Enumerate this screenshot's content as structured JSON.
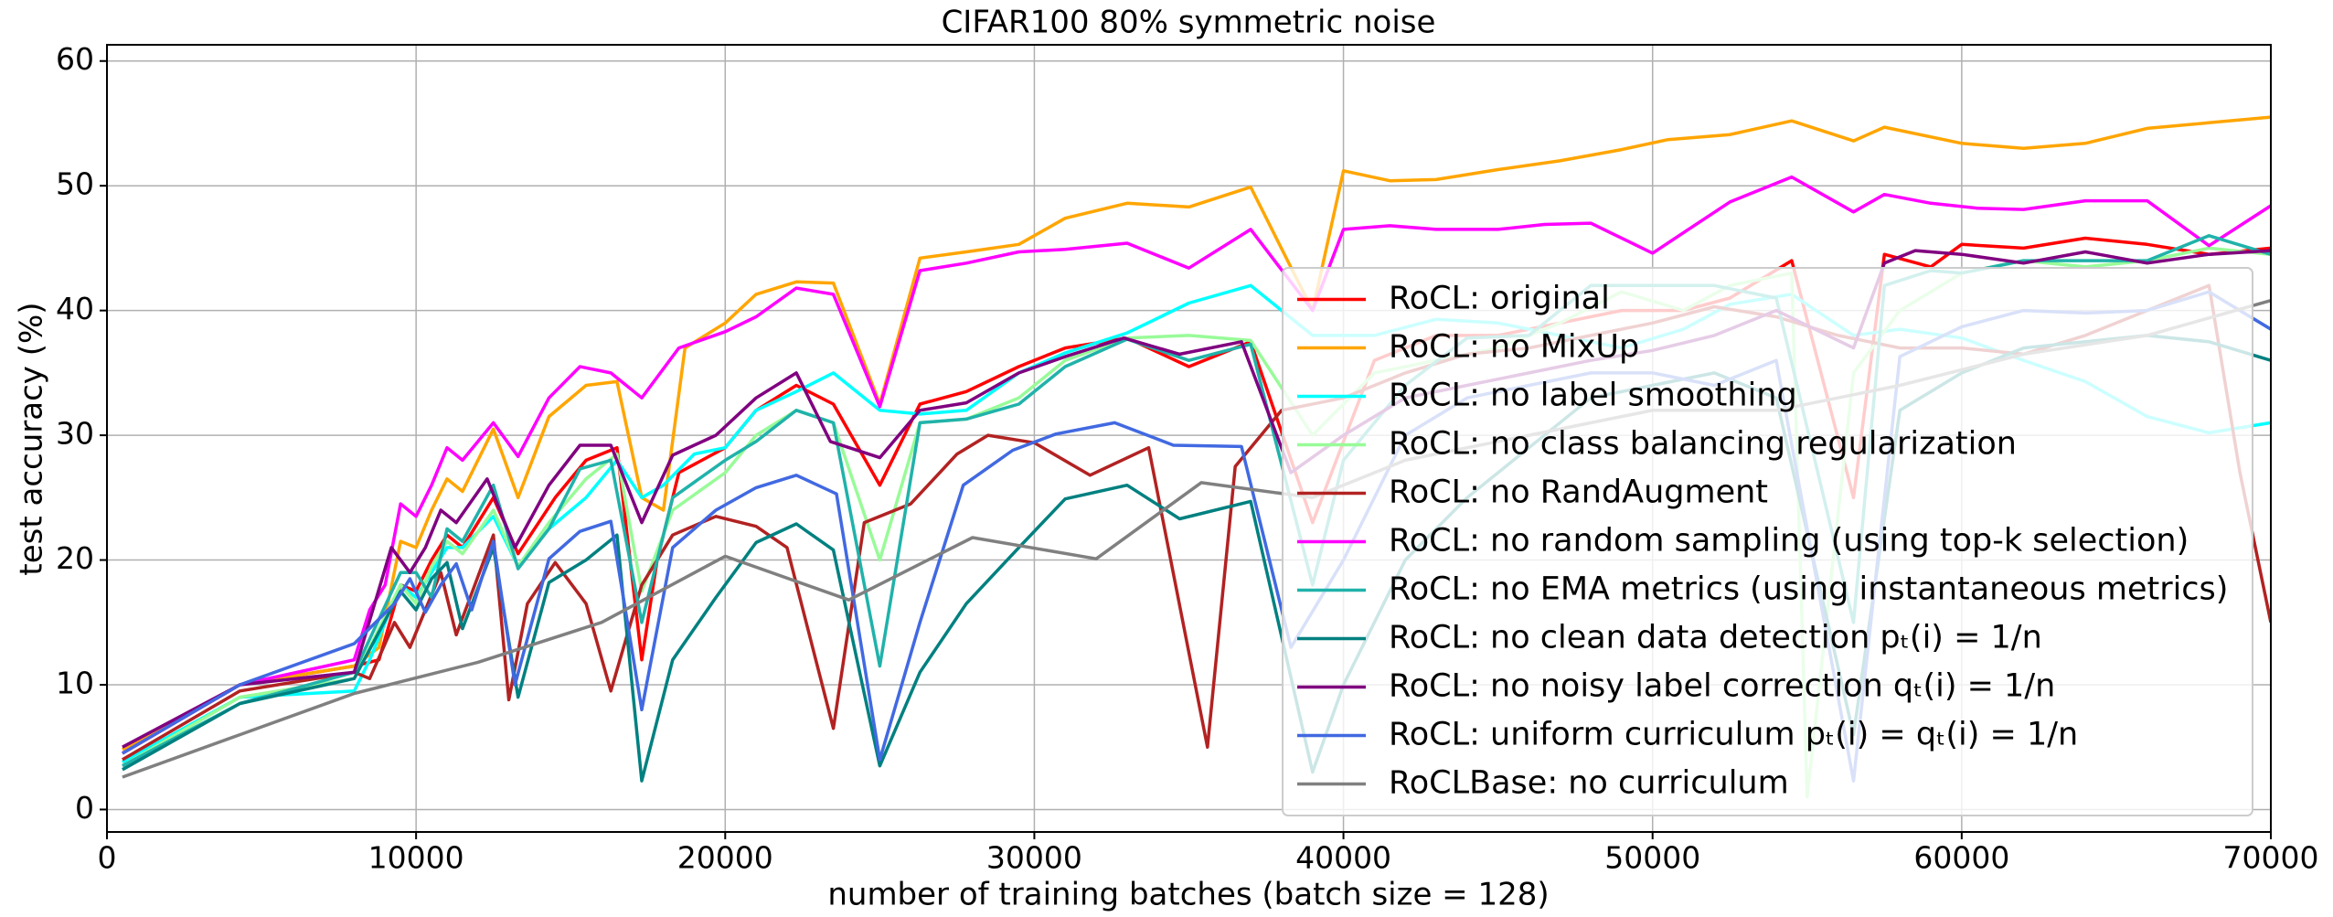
{
  "chart_data": {
    "type": "line",
    "title": "CIFAR100 80% symmetric noise",
    "x_label": "number of training batches (batch size = 128)",
    "y_label": "test accuracy (%)",
    "xlim": [
      0,
      70000
    ],
    "ylim": [
      -1.8,
      61.3
    ],
    "xticks": [
      0,
      10000,
      20000,
      30000,
      40000,
      50000,
      60000,
      70000
    ],
    "yticks": [
      0,
      10,
      20,
      30,
      40,
      50,
      60
    ],
    "grid": true,
    "legend": "lower right",
    "series": [
      {
        "name": "RoCL: original",
        "color": "#ff0000",
        "x": [
          500,
          4300,
          8000,
          8800,
          9500,
          10000,
          10500,
          11000,
          11500,
          12500,
          13300,
          14500,
          15500,
          16500,
          17300,
          17800,
          18500,
          20000,
          21000,
          22300,
          23500,
          25000,
          26300,
          27800,
          29500,
          31000,
          33000,
          35000,
          37000,
          39000,
          41000,
          43000,
          45000,
          47000,
          49000,
          51000,
          52500,
          54500,
          56500,
          57500,
          59000,
          60000,
          62000,
          64000,
          66000,
          68000,
          70000
        ],
        "values": [
          4.5,
          10,
          11.5,
          12,
          18,
          17.5,
          20,
          22,
          21,
          25,
          20.5,
          25,
          28,
          29,
          12,
          20,
          27,
          29,
          32,
          34,
          32.5,
          26,
          32.5,
          33.5,
          35.5,
          37,
          37.8,
          35.5,
          37.5,
          23,
          36,
          38,
          38,
          39,
          40,
          40,
          41,
          44,
          25,
          44.5,
          43.5,
          45.3,
          45,
          45.8,
          45.3,
          44.5,
          45
        ]
      },
      {
        "name": "RoCL: no MixUp",
        "color": "#ffa500",
        "x": [
          500,
          4300,
          8000,
          8800,
          9500,
          10000,
          10500,
          11000,
          11500,
          12500,
          13300,
          14300,
          15500,
          16500,
          17300,
          18000,
          18700,
          20000,
          21000,
          22300,
          23500,
          25000,
          26300,
          27800,
          29500,
          31000,
          33000,
          35000,
          37000,
          39000,
          40000,
          41500,
          43000,
          45000,
          47000,
          49000,
          50500,
          52500,
          54500,
          56500,
          57500,
          60000,
          62000,
          64000,
          66000,
          70000
        ],
        "values": [
          4.8,
          10,
          11.5,
          13,
          21.5,
          21,
          24,
          26.5,
          25.5,
          30.5,
          25,
          31.5,
          34,
          34.3,
          25,
          24,
          37,
          39,
          41.3,
          42.3,
          42.2,
          32.5,
          44.2,
          44.7,
          45.3,
          47.4,
          48.6,
          48.3,
          49.9,
          40,
          51.2,
          50.4,
          50.5,
          51.3,
          52,
          52.9,
          53.7,
          54.1,
          55.2,
          53.6,
          54.7,
          53.4,
          53,
          53.4,
          54.6,
          55.5
        ]
      },
      {
        "name": "RoCL: no label smoothing",
        "color": "#00ffff",
        "x": [
          500,
          4300,
          8000,
          8500,
          9500,
          10000,
          10500,
          11000,
          11500,
          12500,
          13300,
          14300,
          15500,
          16500,
          17300,
          18000,
          19000,
          20000,
          21000,
          22300,
          23500,
          25000,
          26300,
          27800,
          29500,
          31000,
          33000,
          35000,
          37000,
          39000,
          41000,
          43000,
          45000,
          47000,
          49000,
          51000,
          52500,
          54500,
          56500,
          58000,
          60000,
          62000,
          64000,
          66000,
          68000,
          70000
        ],
        "values": [
          3.8,
          9,
          9.5,
          12,
          18,
          17,
          19,
          21,
          21,
          23.5,
          19.5,
          22.5,
          25,
          28,
          25,
          26,
          28.5,
          29,
          32,
          33.5,
          35,
          32,
          31.7,
          32,
          35,
          36.6,
          38.2,
          40.6,
          42,
          38,
          38,
          39.3,
          39,
          38,
          37,
          38.5,
          40.5,
          41.3,
          38,
          38.5,
          37.8,
          36,
          34.3,
          31.5,
          30.2,
          31
        ]
      },
      {
        "name": "RoCL: no class balancing regularization",
        "color": "#98fb98",
        "x": [
          500,
          4300,
          8000,
          9500,
          10000,
          10500,
          11000,
          11500,
          12500,
          13300,
          14300,
          15500,
          16500,
          17300,
          18300,
          20000,
          21000,
          22300,
          23500,
          25000,
          26300,
          27800,
          29500,
          31000,
          33000,
          35000,
          37000,
          39000,
          41000,
          43000,
          45000,
          47000,
          49000,
          51000,
          52500,
          54500,
          55000,
          56500,
          58000,
          60000,
          62000,
          64000,
          66000,
          68000,
          70000
        ],
        "values": [
          3.5,
          9,
          10.5,
          18,
          16.5,
          19.5,
          21.5,
          20.5,
          24,
          19.5,
          23,
          26.5,
          28.5,
          17.5,
          24,
          27,
          30,
          32,
          31,
          20,
          31,
          31.3,
          33,
          36,
          37.8,
          38,
          37.6,
          30,
          35,
          36,
          37,
          39,
          41.5,
          40,
          42,
          43,
          1,
          35,
          40,
          43,
          44,
          43.5,
          44,
          45,
          44.5
        ]
      },
      {
        "name": "RoCL: no RandAugment",
        "color": "#b22222",
        "x": [
          500,
          4300,
          8000,
          8500,
          9300,
          9800,
          10300,
          10800,
          11300,
          12500,
          13000,
          13600,
          14500,
          15500,
          16300,
          17300,
          18300,
          19700,
          21000,
          22000,
          23500,
          24500,
          26000,
          27500,
          28500,
          30000,
          31800,
          33700,
          35600,
          36500,
          38000,
          40000,
          42000,
          44000,
          46000,
          48000,
          50000,
          52000,
          54000,
          56000,
          58000,
          60000,
          62000,
          64000,
          66000,
          68000,
          69000,
          70000
        ],
        "values": [
          4,
          9.5,
          11,
          10.5,
          15,
          13,
          16,
          19,
          14,
          22,
          8.8,
          16.5,
          19.8,
          16.5,
          9.5,
          18,
          22,
          23.5,
          22.7,
          21,
          6.5,
          23,
          24.5,
          28.5,
          30,
          29.4,
          26.8,
          29,
          5,
          27.5,
          32,
          33,
          35,
          36.5,
          37,
          38,
          39,
          40.3,
          39.5,
          38,
          37,
          37,
          36.5,
          38,
          40,
          42,
          27,
          15
        ]
      },
      {
        "name": "RoCL: no random sampling (using top-k selection)",
        "color": "#ff00ff",
        "x": [
          500,
          4300,
          8000,
          8500,
          9000,
          9500,
          10000,
          10500,
          11000,
          11500,
          12500,
          13300,
          14300,
          15300,
          16300,
          17300,
          18500,
          20000,
          21000,
          22300,
          23500,
          25000,
          26300,
          27800,
          29500,
          31000,
          33000,
          35000,
          37000,
          39000,
          40000,
          41500,
          43000,
          45000,
          46500,
          48000,
          50000,
          52500,
          54500,
          56500,
          57500,
          59000,
          60500,
          62000,
          64000,
          66000,
          68000,
          70000
        ],
        "values": [
          4.5,
          10,
          12,
          16,
          18,
          24.5,
          23.5,
          26,
          29,
          28,
          31,
          28.3,
          33,
          35.5,
          35,
          33,
          37,
          38.3,
          39.5,
          41.8,
          41.3,
          32.3,
          43.2,
          43.8,
          44.7,
          44.9,
          45.4,
          43.4,
          46.5,
          40,
          46.5,
          46.8,
          46.5,
          46.5,
          46.9,
          47,
          44.6,
          48.7,
          50.7,
          47.9,
          49.3,
          48.6,
          48.2,
          48.1,
          48.8,
          48.8,
          45.2,
          48.4
        ]
      },
      {
        "name": "RoCL: no EMA metrics (using instantaneous metrics)",
        "color": "#20b2aa",
        "x": [
          500,
          4300,
          8000,
          9500,
          10000,
          10500,
          11000,
          11500,
          12500,
          13300,
          14300,
          15300,
          16300,
          17300,
          18300,
          20000,
          21000,
          22300,
          23500,
          25000,
          26300,
          27800,
          29500,
          31000,
          33000,
          35000,
          37000,
          39000,
          40000,
          42000,
          44000,
          46000,
          48000,
          50000,
          52000,
          54000,
          56500,
          57500,
          59000,
          60000,
          62000,
          64000,
          66000,
          68000,
          70000
        ],
        "values": [
          3.5,
          8.5,
          11,
          19,
          19,
          17,
          22.5,
          21.5,
          26,
          19.3,
          22.5,
          27.3,
          28,
          15,
          25,
          28,
          29.5,
          32,
          31,
          11.5,
          31,
          31.3,
          32.5,
          35.5,
          37.7,
          36,
          37.3,
          18,
          28,
          34,
          37.8,
          38,
          42,
          42,
          42,
          41,
          15,
          42,
          43.2,
          43,
          44,
          44,
          44,
          46,
          44.5
        ]
      },
      {
        "name": "RoCL: no clean data detection pₜ(i) = 1/n",
        "color": "#008080",
        "x": [
          500,
          4300,
          8000,
          9500,
          10000,
          10500,
          11000,
          11500,
          12500,
          13300,
          14300,
          15500,
          16500,
          17300,
          18300,
          19700,
          21000,
          22300,
          23500,
          25000,
          26300,
          27800,
          29500,
          31000,
          33000,
          34700,
          37000,
          39000,
          40000,
          42000,
          44000,
          46000,
          48000,
          50000,
          52000,
          54000,
          56500,
          58000,
          60000,
          62000,
          64000,
          66000,
          68000,
          70000
        ],
        "values": [
          3.2,
          8.5,
          10.5,
          17.5,
          16,
          18.5,
          19.8,
          14.5,
          21,
          9,
          18.2,
          20,
          22,
          2.3,
          12,
          17,
          21.4,
          22.9,
          20.8,
          3.5,
          11,
          16.5,
          21,
          24.9,
          26,
          23.3,
          24.7,
          3,
          10,
          20,
          25,
          29,
          33,
          34,
          35,
          33,
          6,
          32,
          35,
          37,
          37.5,
          38,
          37.5,
          36
        ]
      },
      {
        "name": "RoCL: no noisy label correction qₜ(i) = 1/n",
        "color": "#800080",
        "x": [
          500,
          4300,
          8000,
          9200,
          9800,
          10300,
          10800,
          11300,
          12300,
          13200,
          14300,
          15300,
          16300,
          17300,
          18300,
          19700,
          21000,
          22300,
          23400,
          25000,
          26300,
          27800,
          29500,
          31000,
          32900,
          34700,
          36700,
          38300,
          40000,
          42000,
          44000,
          46000,
          48000,
          50000,
          52000,
          54000,
          56500,
          57500,
          58500,
          60000,
          62000,
          64000,
          66000,
          68000,
          70000
        ],
        "values": [
          5,
          10,
          11,
          21,
          19,
          21,
          24,
          23,
          26.5,
          21,
          26,
          29.2,
          29.2,
          23,
          28.4,
          30,
          33,
          35,
          29.5,
          28.2,
          32,
          32.6,
          35,
          36.3,
          37.8,
          36.5,
          37.5,
          27,
          30,
          33,
          34,
          35,
          36,
          36.8,
          38,
          40,
          37,
          43.8,
          44.8,
          44.5,
          43.8,
          44.7,
          43.8,
          44.5,
          44.8
        ]
      },
      {
        "name": "RoCL: uniform curriculum pₜ(i) = qₜ(i) = 1/n",
        "color": "#4169e1",
        "x": [
          500,
          4300,
          8000,
          9300,
          9800,
          10300,
          10800,
          11300,
          11800,
          12500,
          13200,
          14300,
          15300,
          16300,
          17300,
          18300,
          19700,
          21000,
          22300,
          23600,
          25000,
          26300,
          27700,
          29300,
          30700,
          32600,
          34500,
          36700,
          38300,
          40000,
          42000,
          44000,
          46000,
          48000,
          50000,
          52000,
          54000,
          56500,
          58000,
          60000,
          62000,
          64000,
          66000,
          68000,
          70000
        ],
        "values": [
          4.5,
          10,
          13.3,
          16.5,
          18.5,
          15.8,
          18,
          19.7,
          16,
          21.5,
          10,
          20.1,
          22.3,
          23.1,
          8,
          21,
          24,
          25.8,
          26.8,
          25.3,
          4,
          15,
          26,
          28.8,
          30.1,
          31,
          29.2,
          29.1,
          13,
          20,
          30,
          33,
          34,
          35,
          35,
          34,
          36,
          2.3,
          36.3,
          38.7,
          40,
          39.8,
          40,
          41.5,
          38.5
        ]
      },
      {
        "name": "RoCLBase: no curriculum",
        "color": "#808080",
        "x": [
          500,
          4300,
          8000,
          12000,
          16000,
          20000,
          24000,
          28000,
          32000,
          35400,
          39000,
          42000,
          46000,
          50000,
          54000,
          58000,
          62000,
          66000,
          70000
        ],
        "values": [
          2.6,
          6,
          9.3,
          11.8,
          15,
          20.3,
          16.8,
          21.8,
          20.1,
          26.2,
          25,
          28,
          30,
          32,
          32,
          34,
          36.5,
          38,
          40.8
        ]
      }
    ]
  }
}
